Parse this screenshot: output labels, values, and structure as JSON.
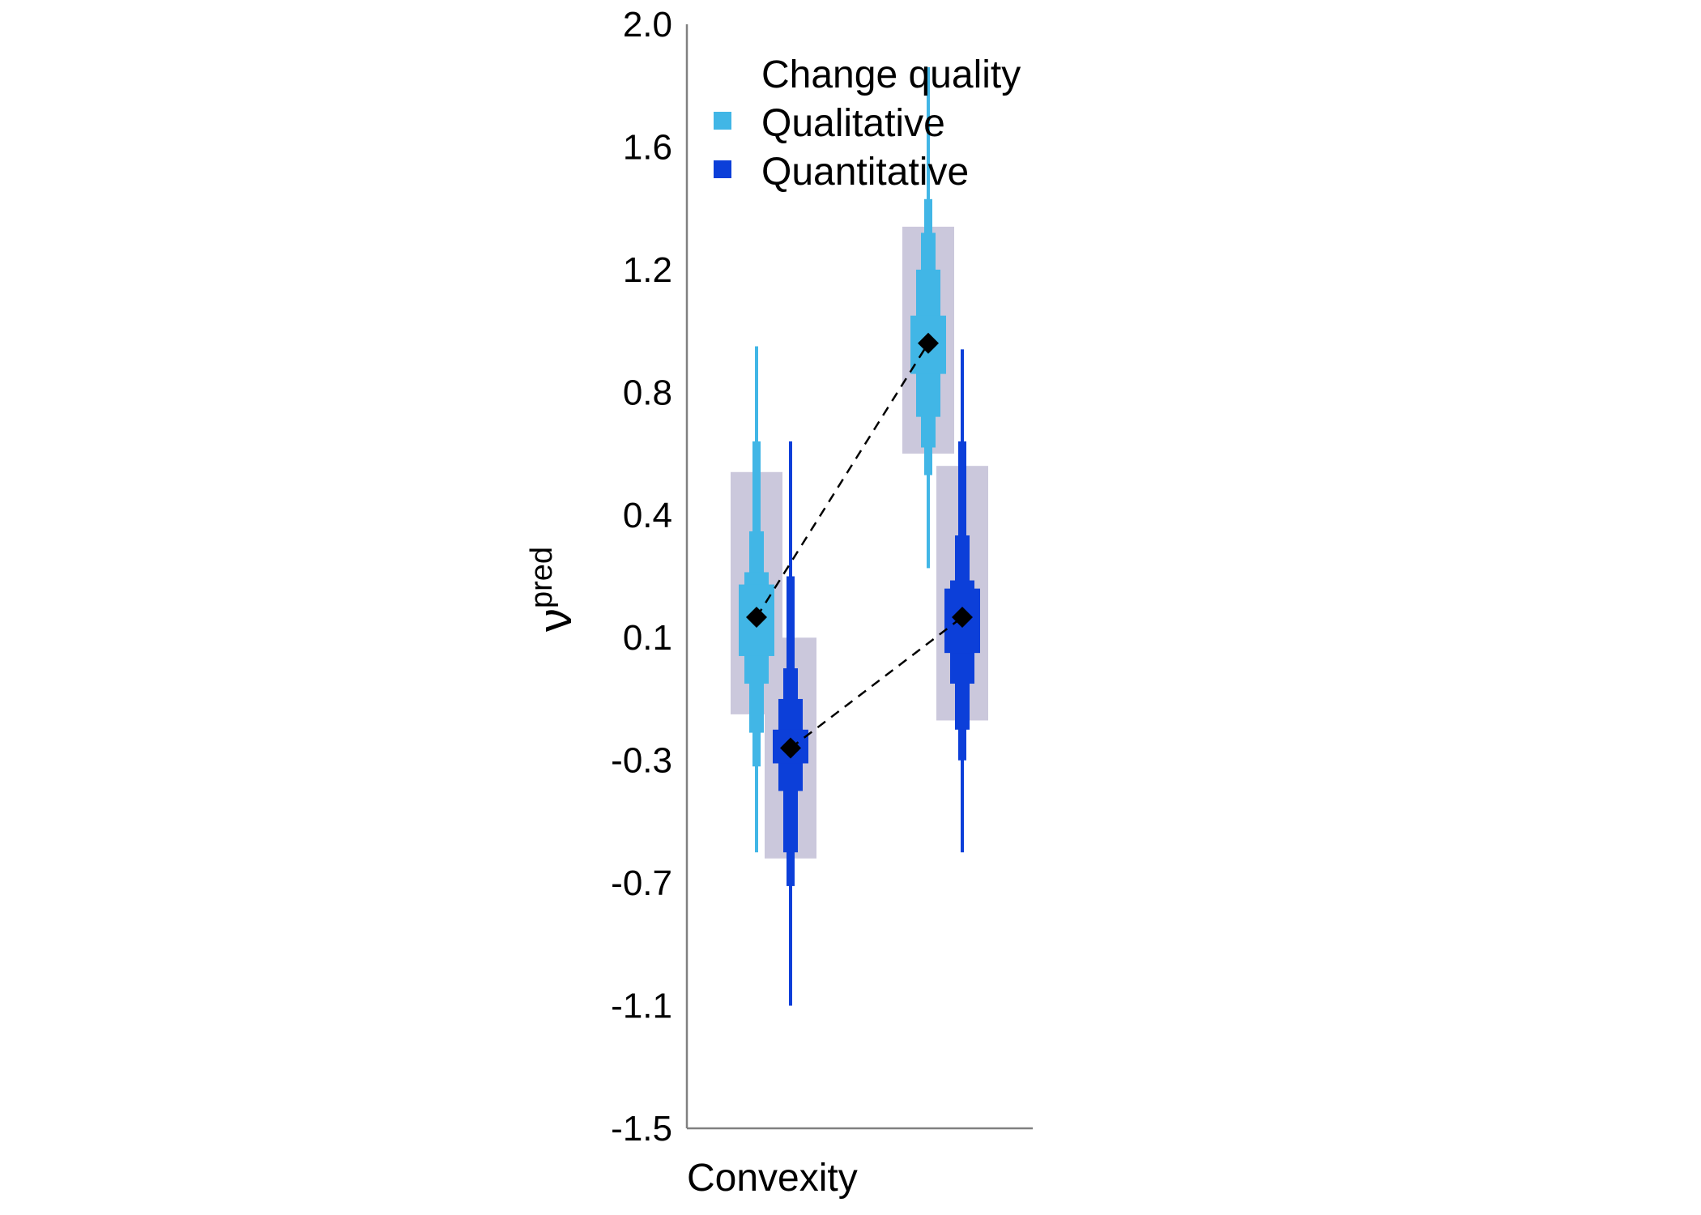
{
  "chart_data": {
    "type": "interval",
    "title": "",
    "xlabel": "Convexity",
    "ylabel": "ν",
    "ylabel_superscript": "pred",
    "y_ticks": [
      "2.0",
      "1.6",
      "1.2",
      "0.8",
      "0.4",
      "0.1",
      "-0.3",
      "-0.7",
      "-1.1",
      "-1.5"
    ],
    "ylim": [
      -1.5,
      2.0
    ],
    "legend": {
      "title": "Change quality",
      "position": "top-left",
      "items": [
        {
          "label": "Qualitative",
          "color": "#41b6e6"
        },
        {
          "label": "Quantitative",
          "color": "#0c3fd9"
        }
      ]
    },
    "colors": {
      "Qualitative": "#41b6e6",
      "Quantitative": "#0c3fd9",
      "hdi_box": "#cbc8dc",
      "axis": "#808080",
      "point": "#000000",
      "connector": "#000000"
    },
    "conditions": [
      "left",
      "right"
    ],
    "series": [
      {
        "name": "Qualitative",
        "intervals": [
          {
            "condition": "left",
            "mean": 0.15,
            "box": [
              -0.15,
              0.54
            ],
            "outer": [
              -0.6,
              0.95
            ],
            "band1": [
              -0.32,
              0.64
            ],
            "band2": [
              -0.21,
              0.36
            ],
            "band3": [
              -0.05,
              0.26
            ],
            "band4": [
              0.04,
              0.23
            ]
          },
          {
            "condition": "right",
            "mean": 0.96,
            "box": [
              0.6,
              1.34
            ],
            "outer": [
              0.27,
              1.86
            ],
            "band1": [
              0.53,
              1.43
            ],
            "band2": [
              0.62,
              1.32
            ],
            "band3": [
              0.72,
              1.2
            ],
            "band4": [
              0.86,
              1.05
            ]
          }
        ]
      },
      {
        "name": "Quantitative",
        "intervals": [
          {
            "condition": "left",
            "mean": -0.26,
            "box": [
              -0.62,
              0.1
            ],
            "outer": [
              -1.1,
              0.64
            ],
            "band1": [
              -0.71,
              0.25
            ],
            "band2": [
              -0.6,
              0.0
            ],
            "band3": [
              -0.4,
              -0.1
            ],
            "band4": [
              -0.31,
              -0.2
            ]
          },
          {
            "condition": "right",
            "mean": 0.15,
            "box": [
              -0.17,
              0.56
            ],
            "outer": [
              -0.6,
              0.94
            ],
            "band1": [
              -0.3,
              0.64
            ],
            "band2": [
              -0.2,
              0.35
            ],
            "band3": [
              -0.05,
              0.24
            ],
            "band4": [
              0.05,
              0.22
            ]
          }
        ]
      }
    ]
  }
}
